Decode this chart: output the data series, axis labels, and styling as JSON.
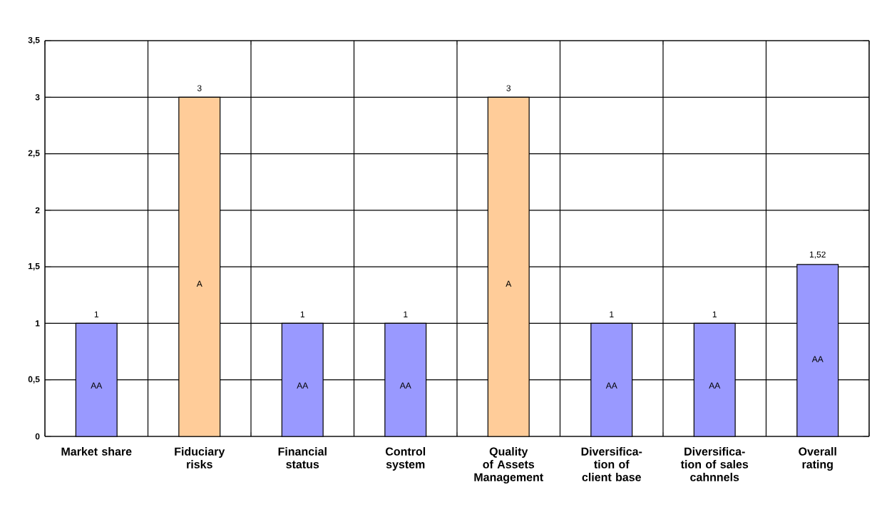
{
  "chart_data": {
    "type": "bar",
    "categories": [
      "Market share",
      "Fiduciary risks",
      "Financial status",
      "Control system",
      "Quality of Assets Management",
      "Diversifica-tion of client base",
      "Diversifica-tion of sales cahnnels",
      "Overall rating"
    ],
    "values": [
      1,
      3,
      1,
      1,
      3,
      1,
      1,
      1.52
    ],
    "colors": [
      "#9999ff",
      "#ffcc99",
      "#9999ff",
      "#9999ff",
      "#ffcc99",
      "#9999ff",
      "#9999ff",
      "#9999ff"
    ],
    "value_labels": [
      "1",
      "3",
      "1",
      "1",
      "3",
      "1",
      "1",
      "1,52"
    ],
    "annotations": [
      "AA",
      "A",
      "AA",
      "AA",
      "A",
      "AA",
      "AA",
      "AA"
    ],
    "ylim": [
      0,
      3.5
    ],
    "yticks": [
      0,
      {
        "value": 0.5,
        "label": "0,5"
      },
      1,
      {
        "value": 1.5,
        "label": "1,5"
      },
      2,
      {
        "value": 2.5,
        "label": "2,5"
      },
      3,
      {
        "value": 3.5,
        "label": "3,5"
      }
    ],
    "grid": true
  }
}
